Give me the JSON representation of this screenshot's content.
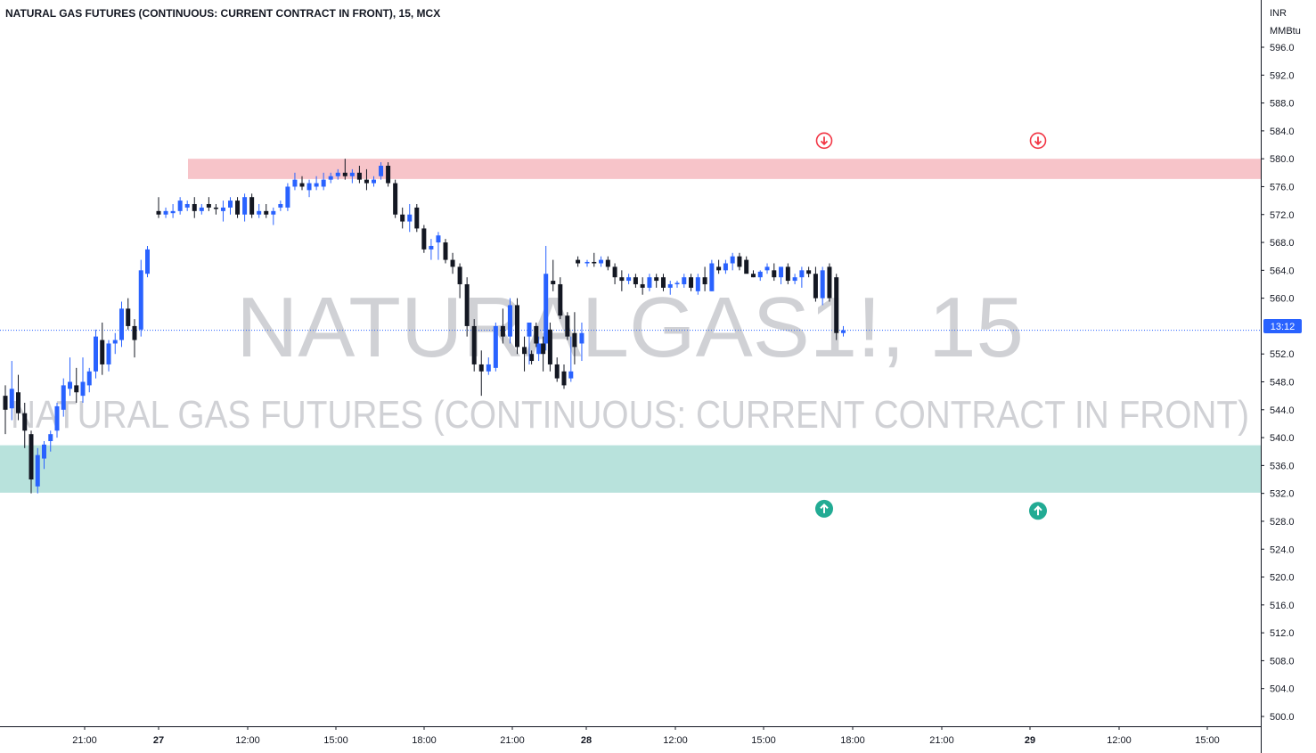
{
  "header": {
    "title": "NATURAL GAS FUTURES (CONTINUOUS: CURRENT CONTRACT IN FRONT), 15, MCX"
  },
  "watermark": {
    "symbol": "NATURALGAS1!, 15",
    "description": "NATURAL GAS FUTURES (CONTINUOUS: CURRENT CONTRACT IN FRONT)"
  },
  "price_axis": {
    "currency": "INR",
    "unit": "MMBtu",
    "current_label": "13:12",
    "current_price": 555.4,
    "ticks": [
      "596.0",
      "592.0",
      "588.0",
      "584.0",
      "580.0",
      "576.0",
      "572.0",
      "568.0",
      "564.0",
      "560.0",
      "552.0",
      "548.0",
      "544.0",
      "540.0",
      "536.0",
      "532.0",
      "528.0",
      "524.0",
      "520.0",
      "516.0",
      "512.0",
      "508.0",
      "504.0",
      "500.0"
    ]
  },
  "time_axis": {
    "labels": [
      {
        "text": "21:00",
        "bold": false
      },
      {
        "text": "27",
        "bold": true
      },
      {
        "text": "12:00",
        "bold": false
      },
      {
        "text": "15:00",
        "bold": false
      },
      {
        "text": "18:00",
        "bold": false
      },
      {
        "text": "21:00",
        "bold": false
      },
      {
        "text": "28",
        "bold": true
      },
      {
        "text": "12:00",
        "bold": false
      },
      {
        "text": "15:00",
        "bold": false
      },
      {
        "text": "18:00",
        "bold": false
      },
      {
        "text": "21:00",
        "bold": false
      },
      {
        "text": "29",
        "bold": true
      },
      {
        "text": "12:00",
        "bold": false
      },
      {
        "text": "15:00",
        "bold": false
      }
    ]
  },
  "zones": {
    "resistance": {
      "top": 580.0,
      "bottom": 577.1,
      "color": "#f7c1c6"
    },
    "support": {
      "top": 538.9,
      "bottom": 532.1,
      "color": "#b4e0da"
    }
  },
  "markers": [
    {
      "type": "sell",
      "icon": "arrow-down-circle-icon",
      "price": 582.6,
      "color": "#f23645"
    },
    {
      "type": "sell",
      "icon": "arrow-down-circle-icon",
      "price": 582.6,
      "color": "#f23645"
    },
    {
      "type": "buy",
      "icon": "arrow-up-circle-icon",
      "price": 529.8,
      "color": "#22ab94"
    },
    {
      "type": "buy",
      "icon": "arrow-up-circle-icon",
      "price": 529.5,
      "color": "#22ab94"
    }
  ],
  "colors": {
    "up": "#2962ff",
    "down": "#131722",
    "price_line": "#2962ff",
    "axis_text": "#131722",
    "watermark": "rgba(120,123,134,0.35)"
  },
  "chart_data": {
    "type": "candlestick",
    "title": "NATURAL GAS FUTURES (CONTINUOUS: CURRENT CONTRACT IN FRONT), 15, MCX",
    "y_unit": "INR / MMBtu",
    "ylim": [
      498.8,
      598.1
    ],
    "x_range": [
      "26 18:00",
      "29 16:15"
    ],
    "grid": false,
    "candles": [
      {
        "t": "26 18:00",
        "o": 546.0,
        "h": 547.5,
        "l": 540.5,
        "c": 544.0
      },
      {
        "t": "26 18:15",
        "o": 544.2,
        "h": 551.0,
        "l": 542.5,
        "c": 547.0
      },
      {
        "t": "26 18:30",
        "o": 546.5,
        "h": 549.0,
        "l": 542.5,
        "c": 543.5
      },
      {
        "t": "26 18:45",
        "o": 543.5,
        "h": 545.0,
        "l": 538.5,
        "c": 541.0
      },
      {
        "t": "26 19:00",
        "o": 540.5,
        "h": 541.0,
        "l": 532.0,
        "c": 534.0
      },
      {
        "t": "26 19:15",
        "o": 533.0,
        "h": 538.5,
        "l": 532.0,
        "c": 537.5
      },
      {
        "t": "26 19:30",
        "o": 537.0,
        "h": 539.5,
        "l": 535.5,
        "c": 539.0
      },
      {
        "t": "26 19:45",
        "o": 539.5,
        "h": 541.0,
        "l": 538.0,
        "c": 540.5
      },
      {
        "t": "26 20:00",
        "o": 541.0,
        "h": 545.0,
        "l": 540.0,
        "c": 544.5
      },
      {
        "t": "26 20:15",
        "o": 544.0,
        "h": 548.5,
        "l": 543.0,
        "c": 547.5
      },
      {
        "t": "26 20:30",
        "o": 547.0,
        "h": 551.5,
        "l": 546.0,
        "c": 548.0
      },
      {
        "t": "26 20:45",
        "o": 547.5,
        "h": 550.0,
        "l": 545.0,
        "c": 546.5
      },
      {
        "t": "26 21:00",
        "o": 546.0,
        "h": 551.5,
        "l": 545.0,
        "c": 548.0
      },
      {
        "t": "26 21:15",
        "o": 547.5,
        "h": 550.0,
        "l": 546.5,
        "c": 549.5
      },
      {
        "t": "26 21:30",
        "o": 549.5,
        "h": 555.5,
        "l": 548.5,
        "c": 554.5
      },
      {
        "t": "26 21:45",
        "o": 554.0,
        "h": 556.5,
        "l": 549.0,
        "c": 550.5
      },
      {
        "t": "26 22:00",
        "o": 550.5,
        "h": 554.0,
        "l": 549.5,
        "c": 553.5
      },
      {
        "t": "26 22:15",
        "o": 553.5,
        "h": 555.0,
        "l": 552.0,
        "c": 554.0
      },
      {
        "t": "26 22:30",
        "o": 554.0,
        "h": 559.5,
        "l": 553.0,
        "c": 558.5
      },
      {
        "t": "26 22:45",
        "o": 558.5,
        "h": 560.0,
        "l": 555.5,
        "c": 556.0
      },
      {
        "t": "26 23:00",
        "o": 556.0,
        "h": 557.0,
        "l": 551.5,
        "c": 554.0
      },
      {
        "t": "26 23:15",
        "o": 555.5,
        "h": 565.5,
        "l": 554.5,
        "c": 564.0
      },
      {
        "t": "26 23:30",
        "o": 563.5,
        "h": 567.5,
        "l": 563.0,
        "c": 567.0
      },
      {
        "t": "27 09:00",
        "o": 572.5,
        "h": 574.5,
        "l": 571.5,
        "c": 572.0
      },
      {
        "t": "27 09:15",
        "o": 572.0,
        "h": 573.0,
        "l": 571.5,
        "c": 572.5
      },
      {
        "t": "27 09:30",
        "o": 572.2,
        "h": 573.5,
        "l": 571.5,
        "c": 572.5
      },
      {
        "t": "27 09:45",
        "o": 572.5,
        "h": 574.5,
        "l": 572.0,
        "c": 574.0
      },
      {
        "t": "27 10:00",
        "o": 573.0,
        "h": 574.0,
        "l": 572.5,
        "c": 573.5
      },
      {
        "t": "27 10:15",
        "o": 573.5,
        "h": 574.5,
        "l": 571.5,
        "c": 572.5
      },
      {
        "t": "27 10:30",
        "o": 572.5,
        "h": 573.5,
        "l": 572.0,
        "c": 573.0
      },
      {
        "t": "27 10:45",
        "o": 573.5,
        "h": 574.5,
        "l": 572.5,
        "c": 573.0
      },
      {
        "t": "27 11:00",
        "o": 573.0,
        "h": 573.5,
        "l": 572.0,
        "c": 572.8
      },
      {
        "t": "27 11:15",
        "o": 572.5,
        "h": 574.0,
        "l": 571.0,
        "c": 573.0
      },
      {
        "t": "27 11:30",
        "o": 573.0,
        "h": 574.5,
        "l": 572.0,
        "c": 574.0
      },
      {
        "t": "27 11:45",
        "o": 574.0,
        "h": 574.5,
        "l": 571.5,
        "c": 572.0
      },
      {
        "t": "27 12:00",
        "o": 572.0,
        "h": 575.0,
        "l": 571.0,
        "c": 574.5
      },
      {
        "t": "27 12:15",
        "o": 574.5,
        "h": 575.0,
        "l": 571.5,
        "c": 572.0
      },
      {
        "t": "27 12:30",
        "o": 572.0,
        "h": 573.5,
        "l": 571.5,
        "c": 572.5
      },
      {
        "t": "27 12:45",
        "o": 572.5,
        "h": 573.5,
        "l": 571.5,
        "c": 572.0
      },
      {
        "t": "27 13:00",
        "o": 572.0,
        "h": 573.0,
        "l": 570.5,
        "c": 572.5
      },
      {
        "t": "27 13:15",
        "o": 573.0,
        "h": 574.0,
        "l": 572.5,
        "c": 573.5
      },
      {
        "t": "27 13:30",
        "o": 573.0,
        "h": 576.5,
        "l": 572.5,
        "c": 576.0
      },
      {
        "t": "27 13:45",
        "o": 576.0,
        "h": 578.0,
        "l": 575.5,
        "c": 577.0
      },
      {
        "t": "27 14:00",
        "o": 576.5,
        "h": 577.5,
        "l": 575.5,
        "c": 576.0
      },
      {
        "t": "27 14:15",
        "o": 575.5,
        "h": 577.0,
        "l": 574.5,
        "c": 576.5
      },
      {
        "t": "27 14:30",
        "o": 576.0,
        "h": 577.5,
        "l": 575.5,
        "c": 576.5
      },
      {
        "t": "27 14:45",
        "o": 576.0,
        "h": 578.0,
        "l": 575.5,
        "c": 577.0
      },
      {
        "t": "27 15:00",
        "o": 577.0,
        "h": 578.0,
        "l": 576.5,
        "c": 577.5
      },
      {
        "t": "27 15:15",
        "o": 577.5,
        "h": 578.5,
        "l": 577.0,
        "c": 578.0
      },
      {
        "t": "27 15:30",
        "o": 578.0,
        "h": 580.0,
        "l": 577.0,
        "c": 577.5
      },
      {
        "t": "27 15:45",
        "o": 577.5,
        "h": 578.5,
        "l": 576.5,
        "c": 578.0
      },
      {
        "t": "27 16:00",
        "o": 578.0,
        "h": 579.0,
        "l": 576.5,
        "c": 577.0
      },
      {
        "t": "27 16:15",
        "o": 577.0,
        "h": 578.5,
        "l": 575.5,
        "c": 576.5
      },
      {
        "t": "27 16:30",
        "o": 576.5,
        "h": 577.5,
        "l": 576.0,
        "c": 577.0
      },
      {
        "t": "27 16:45",
        "o": 577.5,
        "h": 579.5,
        "l": 577.0,
        "c": 579.0
      },
      {
        "t": "27 17:00",
        "o": 579.0,
        "h": 579.5,
        "l": 576.0,
        "c": 576.5
      },
      {
        "t": "27 17:15",
        "o": 576.5,
        "h": 577.0,
        "l": 571.5,
        "c": 572.0
      },
      {
        "t": "27 17:30",
        "o": 572.0,
        "h": 573.0,
        "l": 570.0,
        "c": 571.0
      },
      {
        "t": "27 17:45",
        "o": 571.0,
        "h": 573.5,
        "l": 569.5,
        "c": 572.0
      },
      {
        "t": "27 18:00",
        "o": 573.0,
        "h": 573.5,
        "l": 569.5,
        "c": 570.0
      },
      {
        "t": "27 18:15",
        "o": 570.0,
        "h": 570.5,
        "l": 566.5,
        "c": 567.0
      },
      {
        "t": "27 18:30",
        "o": 567.0,
        "h": 568.5,
        "l": 565.5,
        "c": 567.5
      },
      {
        "t": "27 18:45",
        "o": 568.0,
        "h": 569.5,
        "l": 565.5,
        "c": 569.0
      },
      {
        "t": "27 19:00",
        "o": 568.0,
        "h": 568.5,
        "l": 565.0,
        "c": 565.5
      },
      {
        "t": "27 19:15",
        "o": 565.5,
        "h": 566.5,
        "l": 563.5,
        "c": 564.5
      },
      {
        "t": "27 19:30",
        "o": 564.5,
        "h": 565.0,
        "l": 560.0,
        "c": 562.0
      },
      {
        "t": "27 19:45",
        "o": 562.0,
        "h": 563.0,
        "l": 554.5,
        "c": 556.0
      },
      {
        "t": "27 20:00",
        "o": 556.0,
        "h": 557.0,
        "l": 549.5,
        "c": 550.5
      },
      {
        "t": "27 20:15",
        "o": 550.5,
        "h": 552.5,
        "l": 546.0,
        "c": 549.5
      },
      {
        "t": "27 20:30",
        "o": 549.5,
        "h": 551.5,
        "l": 549.0,
        "c": 550.5
      },
      {
        "t": "27 20:45",
        "o": 550.0,
        "h": 556.5,
        "l": 549.5,
        "c": 556.0
      },
      {
        "t": "27 21:00",
        "o": 556.0,
        "h": 558.5,
        "l": 553.5,
        "c": 554.5
      },
      {
        "t": "27 21:15",
        "o": 554.5,
        "h": 560.0,
        "l": 553.5,
        "c": 559.0
      },
      {
        "t": "27 21:30",
        "o": 559.0,
        "h": 560.0,
        "l": 552.0,
        "c": 553.0
      },
      {
        "t": "27 21:45",
        "o": 553.0,
        "h": 554.5,
        "l": 549.5,
        "c": 552.0
      },
      {
        "t": "27 22:00",
        "o": 552.0,
        "h": 552.5,
        "l": 550.5,
        "c": 551.0
      },
      {
        "t": "27 22:15",
        "o": 552.0,
        "h": 554.5,
        "l": 551.0,
        "c": 553.5
      },
      {
        "t": "27 22:30",
        "o": 553.5,
        "h": 567.5,
        "l": 552.5,
        "c": 563.5
      },
      {
        "t": "27 22:45",
        "o": 562.5,
        "h": 565.5,
        "l": 561.0,
        "c": 562.0
      },
      {
        "t": "27 23:00",
        "o": 562.0,
        "h": 563.0,
        "l": 557.0,
        "c": 557.5
      },
      {
        "t": "27 23:15",
        "o": 557.5,
        "h": 558.0,
        "l": 554.0,
        "c": 554.5
      },
      {
        "t": "27 23:30",
        "o": 555.0,
        "h": 558.0,
        "l": 550.5,
        "c": 553.0
      },
      {
        "t": "28 09:00",
        "o": 553.5,
        "h": 556.5,
        "l": 551.0,
        "c": 555.0
      },
      {
        "t": "28 09:15",
        "o": 554.5,
        "h": 556.0,
        "l": 550.5,
        "c": 556.5
      },
      {
        "t": "28 09:30",
        "o": 556.0,
        "h": 556.5,
        "l": 553.0,
        "c": 553.5
      },
      {
        "t": "28 09:45",
        "o": 553.5,
        "h": 554.5,
        "l": 549.5,
        "c": 552.0
      },
      {
        "t": "28 10:00",
        "o": 555.5,
        "h": 556.5,
        "l": 549.5,
        "c": 550.5
      },
      {
        "t": "28 10:15",
        "o": 550.5,
        "h": 551.5,
        "l": 548.0,
        "c": 548.5
      },
      {
        "t": "28 10:30",
        "o": 549.5,
        "h": 550.5,
        "l": 547.0,
        "c": 547.5
      },
      {
        "t": "28 10:45",
        "o": 548.5,
        "h": 554.5,
        "l": 548.0,
        "c": 549.5
      },
      {
        "t": "28 11:00",
        "o": 565.5,
        "h": 566.0,
        "l": 564.5,
        "c": 565.0
      },
      {
        "t": "28 11:15",
        "o": 565.0,
        "h": 565.5,
        "l": 564.5,
        "c": 565.2
      },
      {
        "t": "28 11:30",
        "o": 565.2,
        "h": 566.5,
        "l": 564.5,
        "c": 565.0
      },
      {
        "t": "28 11:45",
        "o": 565.0,
        "h": 566.0,
        "l": 564.5,
        "c": 565.5
      },
      {
        "t": "28 12:00",
        "o": 565.5,
        "h": 566.0,
        "l": 564.0,
        "c": 564.5
      },
      {
        "t": "28 12:15",
        "o": 564.5,
        "h": 565.0,
        "l": 562.0,
        "c": 563.0
      },
      {
        "t": "28 12:30",
        "o": 563.0,
        "h": 564.0,
        "l": 561.0,
        "c": 562.5
      },
      {
        "t": "28 12:45",
        "o": 562.5,
        "h": 563.5,
        "l": 562.0,
        "c": 563.0
      },
      {
        "t": "28 13:00",
        "o": 563.0,
        "h": 563.5,
        "l": 561.5,
        "c": 562.0
      },
      {
        "t": "28 13:15",
        "o": 562.0,
        "h": 563.0,
        "l": 560.5,
        "c": 561.5
      },
      {
        "t": "28 13:30",
        "o": 561.5,
        "h": 563.5,
        "l": 561.0,
        "c": 563.0
      },
      {
        "t": "28 13:45",
        "o": 563.0,
        "h": 563.5,
        "l": 561.5,
        "c": 562.5
      },
      {
        "t": "28 14:00",
        "o": 563.0,
        "h": 563.5,
        "l": 561.0,
        "c": 561.5
      },
      {
        "t": "28 14:15",
        "o": 561.5,
        "h": 562.5,
        "l": 560.5,
        "c": 562.0
      },
      {
        "t": "28 14:30",
        "o": 562.0,
        "h": 562.5,
        "l": 561.5,
        "c": 562.2
      },
      {
        "t": "28 14:45",
        "o": 562.0,
        "h": 563.5,
        "l": 561.5,
        "c": 563.0
      },
      {
        "t": "28 15:00",
        "o": 563.0,
        "h": 563.5,
        "l": 561.0,
        "c": 561.5
      },
      {
        "t": "28 15:15",
        "o": 561.0,
        "h": 563.5,
        "l": 560.5,
        "c": 563.0
      },
      {
        "t": "28 15:30",
        "o": 563.0,
        "h": 564.5,
        "l": 561.0,
        "c": 562.0
      },
      {
        "t": "28 15:45",
        "o": 561.0,
        "h": 565.5,
        "l": 561.0,
        "c": 565.0
      },
      {
        "t": "28 16:00",
        "o": 564.5,
        "h": 565.5,
        "l": 563.5,
        "c": 564.0
      },
      {
        "t": "28 16:15",
        "o": 564.0,
        "h": 565.5,
        "l": 563.5,
        "c": 565.0
      },
      {
        "t": "28 16:30",
        "o": 565.0,
        "h": 566.5,
        "l": 564.0,
        "c": 566.0
      },
      {
        "t": "28 16:45",
        "o": 566.0,
        "h": 566.5,
        "l": 564.0,
        "c": 564.5
      },
      {
        "t": "28 17:00",
        "o": 565.5,
        "h": 566.0,
        "l": 564.0,
        "c": 563.5
      },
      {
        "t": "28 17:15",
        "o": 563.5,
        "h": 564.0,
        "l": 563.0,
        "c": 563.0
      },
      {
        "t": "28 17:30",
        "o": 563.0,
        "h": 564.0,
        "l": 562.5,
        "c": 563.8
      },
      {
        "t": "28 17:45",
        "o": 564.0,
        "h": 565.0,
        "l": 563.5,
        "c": 564.5
      },
      {
        "t": "28 18:00",
        "o": 564.0,
        "h": 565.0,
        "l": 562.5,
        "c": 563.0
      },
      {
        "t": "28 18:15",
        "o": 563.0,
        "h": 564.5,
        "l": 562.0,
        "c": 564.5
      },
      {
        "t": "28 18:30",
        "o": 564.5,
        "h": 565.0,
        "l": 562.0,
        "c": 562.5
      },
      {
        "t": "28 18:45",
        "o": 562.5,
        "h": 563.5,
        "l": 562.0,
        "c": 563.0
      },
      {
        "t": "28 19:00",
        "o": 563.0,
        "h": 564.5,
        "l": 561.5,
        "c": 564.0
      },
      {
        "t": "28 19:15",
        "o": 564.0,
        "h": 564.5,
        "l": 563.0,
        "c": 563.5
      },
      {
        "t": "28 19:30",
        "o": 563.5,
        "h": 564.5,
        "l": 559.5,
        "c": 560.0
      },
      {
        "t": "28 19:45",
        "o": 560.0,
        "h": 564.5,
        "l": 559.0,
        "c": 564.0
      },
      {
        "t": "28 20:00",
        "o": 564.5,
        "h": 565.0,
        "l": 559.5,
        "c": 560.0
      },
      {
        "t": "28 20:15",
        "o": 563.0,
        "h": 563.5,
        "l": 554.0,
        "c": 555.0
      },
      {
        "t": "28 20:30",
        "o": 555.0,
        "h": 556.0,
        "l": 554.5,
        "c": 555.4
      }
    ]
  }
}
